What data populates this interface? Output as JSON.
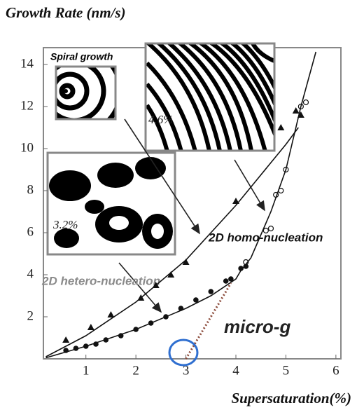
{
  "chart_data": {
    "type": "scatter",
    "title": "Growth Rate (nm/s)",
    "x_label": "Supersaturation(%)",
    "xlim": [
      0.15,
      6.1
    ],
    "ylim": [
      0,
      14.8
    ],
    "xticks": [
      1,
      2,
      3,
      4,
      5,
      6
    ],
    "yticks": [
      2,
      4,
      6,
      8,
      10,
      12,
      14
    ],
    "series": [
      {
        "marker": "triangle",
        "color": "#111111",
        "x": [
          0.6,
          1.1,
          1.5,
          2.1,
          2.4,
          2.7,
          3.0,
          4.0,
          4.9,
          5.2,
          5.3
        ],
        "values": [
          0.9,
          1.5,
          2.1,
          2.9,
          3.5,
          4.0,
          4.6,
          7.5,
          11.0,
          11.8,
          11.6
        ]
      },
      {
        "marker": "dot",
        "color": "#111111",
        "x": [
          0.6,
          0.8,
          1.0,
          1.2,
          1.4,
          1.7,
          2.0,
          2.3,
          2.6,
          2.9,
          3.2,
          3.5,
          3.8,
          3.9,
          4.1,
          4.2
        ],
        "values": [
          0.4,
          0.5,
          0.6,
          0.7,
          0.9,
          1.1,
          1.4,
          1.7,
          2.0,
          2.4,
          2.8,
          3.2,
          3.7,
          3.8,
          4.3,
          4.4
        ]
      },
      {
        "marker": "circle",
        "color": "#111111",
        "x": [
          4.2,
          4.6,
          4.7,
          4.8,
          4.9,
          5.0,
          5.3,
          5.4
        ],
        "values": [
          4.6,
          6.1,
          6.2,
          7.8,
          8.0,
          9.0,
          12.0,
          12.2
        ]
      },
      {
        "marker": "line",
        "color": "#111111",
        "x": [
          0.2,
          1,
          2,
          3,
          4,
          5,
          5.25
        ],
        "values": [
          0.1,
          1.1,
          2.7,
          4.7,
          7.3,
          10.2,
          11.0
        ]
      },
      {
        "marker": "line",
        "color": "#111111",
        "x": [
          0.2,
          1,
          2,
          3,
          3.5,
          4,
          4.1,
          4.3,
          4.7,
          5.0,
          5.3,
          5.6
        ],
        "values": [
          0.05,
          0.6,
          1.4,
          2.4,
          3.0,
          3.8,
          4.2,
          4.8,
          7.0,
          9.0,
          12.0,
          14.6
        ]
      },
      {
        "marker": "dotted",
        "color": "#8b4a3a",
        "x": [
          3.0,
          3.9
        ],
        "values": [
          0.0,
          3.6
        ]
      }
    ],
    "highlight": {
      "x": 2.95,
      "y": 0.3,
      "color": "#2f6fd0"
    },
    "annotations": {
      "spiral": "Spiral growth",
      "homo": "2D homo-nucleation",
      "hetero": "2D hetero-nucleation",
      "micro": "micro-g",
      "homo_inset": "4.6%",
      "hetero_inset": "3.2%"
    }
  }
}
